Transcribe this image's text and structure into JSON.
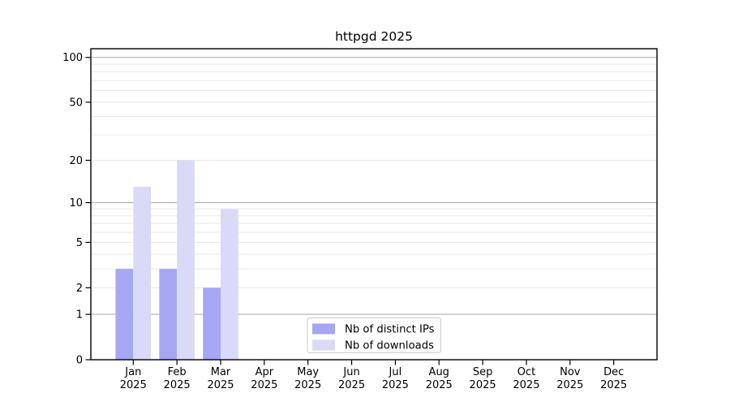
{
  "chart_data": {
    "type": "bar",
    "title": "httpgd 2025",
    "x_tick_months": [
      "Jan",
      "Feb",
      "Mar",
      "Apr",
      "May",
      "Jun",
      "Jul",
      "Aug",
      "Sep",
      "Oct",
      "Nov",
      "Dec"
    ],
    "x_tick_year": "2025",
    "categories": [
      "Jan 2025",
      "Feb 2025",
      "Mar 2025",
      "Apr 2025",
      "May 2025",
      "Jun 2025",
      "Jul 2025",
      "Aug 2025",
      "Sep 2025",
      "Oct 2025",
      "Nov 2025",
      "Dec 2025"
    ],
    "series": [
      {
        "name": "Nb of distinct IPs",
        "color": "#a6a6f2",
        "values": [
          3,
          3,
          2,
          0,
          0,
          0,
          0,
          0,
          0,
          0,
          0,
          0
        ]
      },
      {
        "name": "Nb of downloads",
        "color": "#dadaf8",
        "values": [
          13,
          20,
          9,
          0,
          0,
          0,
          0,
          0,
          0,
          0,
          0,
          0
        ]
      }
    ],
    "y_axis": {
      "scale": "log10(value+1)",
      "tick_values": [
        0,
        1,
        2,
        5,
        10,
        20,
        50,
        100
      ],
      "major_grid_values": [
        1,
        10,
        100
      ],
      "minor_grid_values": [
        2,
        3,
        4,
        5,
        6,
        7,
        8,
        9,
        20,
        30,
        40,
        50,
        60,
        70,
        80,
        90
      ],
      "ylim": [
        0,
        100
      ]
    },
    "legend": {
      "position": "bottom-center"
    },
    "colors": {
      "major_grid": "#b0b0b0",
      "minor_grid": "#e8e8e8",
      "spine": "#000000",
      "background": "#ffffff",
      "legend_border": "#cccccc"
    }
  }
}
